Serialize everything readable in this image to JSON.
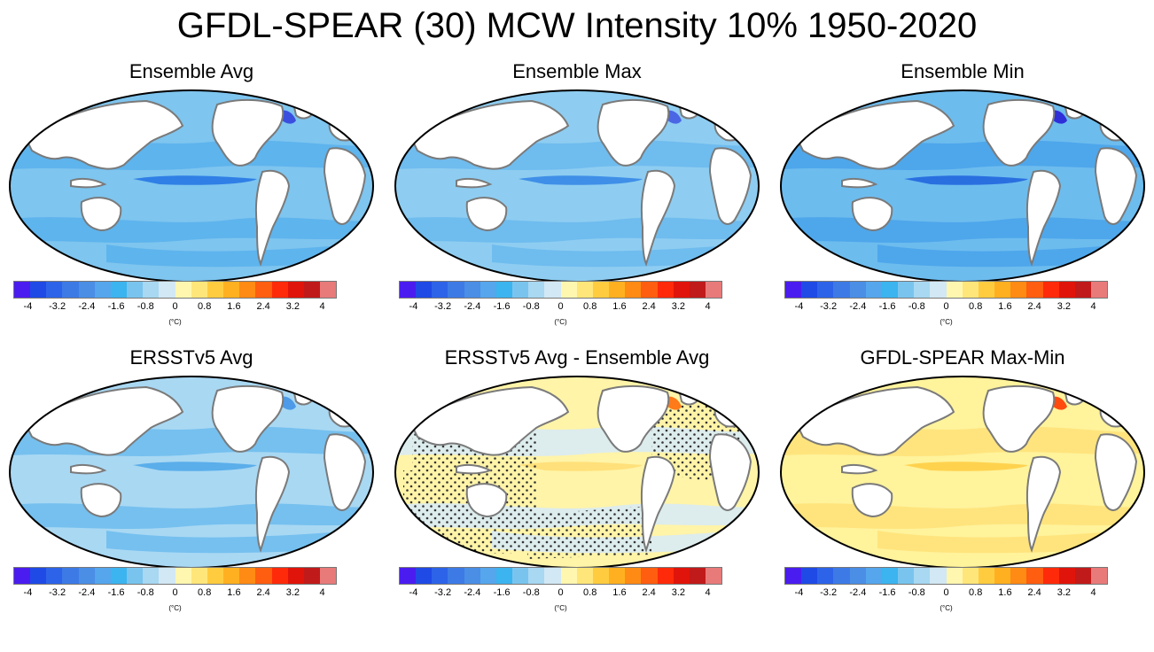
{
  "figure_title": "GFDL-SPEAR (30) MCW Intensity 10% 1950-2020",
  "colorbar": {
    "colors": [
      "#4b1cf0",
      "#1f4ae6",
      "#2d63e8",
      "#3d7ae6",
      "#4a8ee6",
      "#55a6ec",
      "#3bb4ef",
      "#79c4ee",
      "#a8d8f2",
      "#d2e8f4",
      "#fff7b0",
      "#ffe67a",
      "#ffcc40",
      "#ffb020",
      "#ff8a14",
      "#ff5d10",
      "#ff2a0a",
      "#e0140a",
      "#c01a1a",
      "#e87a7a"
    ],
    "tick_labels": [
      "-4",
      "-3.2",
      "-2.4",
      "-1.6",
      "-0.8",
      "0",
      "0.8",
      "1.6",
      "2.4",
      "3.2",
      "4"
    ],
    "units": "(°C)"
  },
  "panels": [
    {
      "title": "Ensemble Avg",
      "fill": "#7ec5ef",
      "shade": "#5bb1ec",
      "band": "#2f7fe6",
      "hot": "#3a4fe0",
      "stipple": false
    },
    {
      "title": "Ensemble Max",
      "fill": "#8ecdf1",
      "shade": "#6cbaee",
      "band": "#3f8fe8",
      "hot": "#4a66e4",
      "stipple": false
    },
    {
      "title": "Ensemble Min",
      "fill": "#6dbcee",
      "shade": "#4aa4ea",
      "band": "#2a6fe0",
      "hot": "#2e2fd8",
      "stipple": false
    },
    {
      "title": "ERSSTv5 Avg",
      "fill": "#a9d8f3",
      "shade": "#6fbeee",
      "band": "#5aaeea",
      "hot": "#4c9ae8",
      "stipple": false
    },
    {
      "title": "ERSSTv5 Avg - Ensemble Avg",
      "fill": "#fff4a8",
      "shade": "#d9ebf4",
      "band": "#ffe07a",
      "hot": "#ff7a18",
      "stipple": true
    },
    {
      "title": "GFDL-SPEAR Max-Min",
      "fill": "#fff39c",
      "shade": "#ffe27a",
      "band": "#ffd24e",
      "hot": "#ff4a10",
      "stipple": false
    }
  ]
}
